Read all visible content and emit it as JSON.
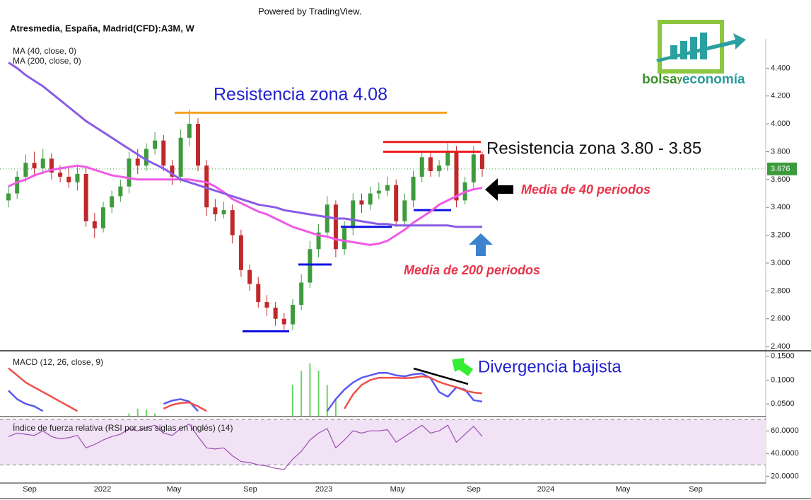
{
  "header": {
    "powered": "Powered by TradingView.",
    "title": "Atresmedia, España, Madrid(CFD):A3M, W"
  },
  "logo": {
    "first": "bolsa",
    "middle": "y",
    "last": "economía"
  },
  "x_axis": {
    "labels": [
      "Sep",
      "2022",
      "May",
      "Sep",
      "2023",
      "May",
      "Sep",
      "2024",
      "May",
      "Sep"
    ]
  },
  "chart_data": [
    {
      "type": "candlestick",
      "up_color": "#3d9b3d",
      "down_color": "#c0282a",
      "open": [
        3.45,
        3.5,
        3.62,
        3.72,
        3.68,
        3.75,
        3.65,
        3.62,
        3.58,
        3.64,
        3.3,
        3.25,
        3.4,
        3.48,
        3.55,
        3.75,
        3.7,
        3.82,
        3.88,
        3.7,
        3.62,
        3.9,
        4.0,
        3.7,
        3.4,
        3.35,
        3.38,
        3.2,
        2.95,
        2.85,
        2.72,
        2.68,
        2.6,
        2.56,
        2.7,
        2.86,
        3.1,
        3.22,
        3.42,
        3.1,
        3.25,
        3.45,
        3.42,
        3.5,
        3.52,
        3.56,
        3.3,
        3.45,
        3.62,
        3.76,
        3.66,
        3.7,
        3.8,
        3.45,
        3.58,
        3.78
      ],
      "high": [
        3.55,
        3.66,
        3.78,
        3.8,
        3.82,
        3.79,
        3.7,
        3.68,
        3.7,
        3.68,
        3.36,
        3.44,
        3.52,
        3.6,
        3.8,
        3.82,
        3.86,
        3.94,
        3.92,
        3.74,
        3.96,
        4.1,
        4.04,
        3.74,
        3.46,
        3.44,
        3.42,
        3.24,
        2.99,
        2.9,
        2.77,
        2.72,
        2.64,
        2.74,
        2.92,
        3.16,
        3.28,
        3.48,
        3.45,
        3.3,
        3.5,
        3.5,
        3.55,
        3.58,
        3.62,
        3.6,
        3.5,
        3.66,
        3.8,
        3.8,
        3.74,
        3.86,
        3.84,
        3.62,
        3.84,
        3.8
      ],
      "low": [
        3.4,
        3.46,
        3.58,
        3.62,
        3.64,
        3.6,
        3.58,
        3.54,
        3.52,
        3.26,
        3.18,
        3.22,
        3.36,
        3.44,
        3.5,
        3.64,
        3.66,
        3.78,
        3.66,
        3.56,
        3.58,
        3.84,
        3.66,
        3.34,
        3.3,
        3.32,
        3.14,
        2.9,
        2.8,
        2.68,
        2.62,
        2.55,
        2.52,
        2.52,
        2.66,
        2.82,
        3.04,
        3.18,
        3.04,
        3.06,
        3.2,
        3.36,
        3.38,
        3.46,
        3.48,
        3.26,
        3.26,
        3.4,
        3.58,
        3.62,
        3.62,
        3.66,
        3.4,
        3.42,
        3.54,
        3.62
      ],
      "close": [
        3.5,
        3.62,
        3.72,
        3.68,
        3.75,
        3.65,
        3.62,
        3.58,
        3.64,
        3.3,
        3.25,
        3.4,
        3.48,
        3.55,
        3.75,
        3.7,
        3.82,
        3.88,
        3.7,
        3.62,
        3.9,
        4.0,
        3.7,
        3.4,
        3.35,
        3.38,
        3.2,
        2.95,
        2.85,
        2.72,
        2.68,
        2.6,
        2.56,
        2.7,
        2.86,
        3.1,
        3.22,
        3.42,
        3.1,
        3.25,
        3.45,
        3.42,
        3.5,
        3.52,
        3.56,
        3.3,
        3.45,
        3.62,
        3.76,
        3.66,
        3.7,
        3.8,
        3.45,
        3.58,
        3.78,
        3.676
      ],
      "last_color": "#3d9b3d",
      "series": [
        {
          "name": "MA (40, close, 0)",
          "color": "#f05ae6",
          "values": [
            3.55,
            3.58,
            3.6,
            3.63,
            3.65,
            3.67,
            3.68,
            3.69,
            3.7,
            3.69,
            3.67,
            3.65,
            3.63,
            3.62,
            3.61,
            3.6,
            3.6,
            3.6,
            3.6,
            3.6,
            3.6,
            3.6,
            3.59,
            3.58,
            3.55,
            3.51,
            3.46,
            3.43,
            3.4,
            3.37,
            3.35,
            3.32,
            3.29,
            3.26,
            3.24,
            3.22,
            3.2,
            3.19,
            3.17,
            3.16,
            3.15,
            3.14,
            3.13,
            3.14,
            3.16,
            3.2,
            3.24,
            3.29,
            3.33,
            3.37,
            3.42,
            3.45,
            3.48,
            3.51,
            3.53,
            3.54
          ]
        },
        {
          "name": "MA (200, close, 0)",
          "color": "#8a5ce6",
          "values": [
            4.44,
            4.4,
            4.35,
            4.31,
            4.27,
            4.22,
            4.17,
            4.12,
            4.07,
            4.02,
            3.98,
            3.94,
            3.9,
            3.86,
            3.82,
            3.78,
            3.74,
            3.71,
            3.68,
            3.64,
            3.6,
            3.58,
            3.56,
            3.54,
            3.52,
            3.5,
            3.48,
            3.46,
            3.44,
            3.42,
            3.41,
            3.4,
            3.38,
            3.37,
            3.36,
            3.35,
            3.34,
            3.33,
            3.32,
            3.32,
            3.31,
            3.3,
            3.29,
            3.28,
            3.28,
            3.27,
            3.27,
            3.27,
            3.27,
            3.27,
            3.27,
            3.27,
            3.26,
            3.26,
            3.26,
            3.26
          ]
        }
      ],
      "levels": [
        {
          "value": 4.08,
          "color": "#f5a020"
        },
        {
          "value": 3.87,
          "color": "#ee1c1c"
        },
        {
          "value": 3.8,
          "color": "#ee1c1c"
        },
        {
          "value": 2.51,
          "color": "#1010e0"
        },
        {
          "value": 2.99,
          "color": "#1010e0"
        },
        {
          "value": 3.26,
          "color": "#1010e0"
        },
        {
          "value": 3.38,
          "color": "#1010e0"
        }
      ],
      "annotations": [
        {
          "text": "Resistencia zona 4.08",
          "color": "#2222cc"
        },
        {
          "text": "Resistencia zona 3.80 - 3.85",
          "color": "#111111"
        },
        {
          "text": "Media de 40 periodos",
          "color": "#e8344a"
        },
        {
          "text": "Media de 200 periodos",
          "color": "#e8344a"
        }
      ],
      "ylim": [
        2.37,
        4.61
      ],
      "yticks": [
        {
          "value": 2.4,
          "label": "2.400"
        },
        {
          "value": 2.6,
          "label": "2.600"
        },
        {
          "value": 2.8,
          "label": "2.800"
        },
        {
          "value": 3.0,
          "label": "3.000"
        },
        {
          "value": 3.2,
          "label": "3.200"
        },
        {
          "value": 3.4,
          "label": "3.400"
        },
        {
          "value": 3.6,
          "label": "3.600"
        },
        {
          "value": 3.8,
          "label": "3.800"
        },
        {
          "value": 4.0,
          "label": "4.000"
        },
        {
          "value": 4.2,
          "label": "4.200"
        },
        {
          "value": 4.4,
          "label": "4.400"
        }
      ]
    },
    {
      "type": "line",
      "title": "MACD (12, 26, close, 9)",
      "annotation": {
        "text": "Divergencia bajista",
        "color": "#2222cc"
      },
      "series": [
        {
          "color": "#5a5af0",
          "values": [
            0.078,
            0.06,
            0.05,
            0.045,
            0.035,
            null,
            null,
            null,
            null,
            null,
            null,
            null,
            null,
            null,
            null,
            null,
            null,
            null,
            0.05,
            0.057,
            0.06,
            0.055,
            0.035,
            null,
            null,
            null,
            null,
            null,
            null,
            null,
            null,
            null,
            null,
            null,
            null,
            null,
            null,
            0.035,
            0.06,
            0.08,
            0.095,
            0.105,
            0.11,
            0.115,
            0.115,
            0.11,
            0.108,
            0.112,
            0.114,
            0.104,
            0.075,
            0.065,
            0.085,
            0.08,
            0.058,
            0.055
          ]
        },
        {
          "color": "#f0504a",
          "values": [
            0.125,
            0.11,
            0.095,
            0.085,
            0.075,
            0.065,
            0.055,
            0.045,
            0.035,
            null,
            null,
            null,
            null,
            null,
            null,
            null,
            null,
            null,
            0.04,
            0.048,
            0.052,
            0.053,
            0.045,
            0.035,
            null,
            null,
            null,
            null,
            null,
            null,
            null,
            null,
            null,
            null,
            null,
            null,
            null,
            null,
            null,
            0.04,
            0.07,
            0.09,
            0.1,
            0.105,
            0.105,
            0.105,
            0.104,
            0.105,
            0.108,
            0.105,
            0.096,
            0.09,
            0.085,
            0.078,
            0.074,
            0.072
          ]
        }
      ],
      "histogram": {
        "color": "#66d866",
        "values": [
          null,
          null,
          null,
          null,
          null,
          null,
          null,
          null,
          null,
          null,
          null,
          null,
          null,
          null,
          0.03,
          0.04,
          0.038,
          0.03,
          null,
          null,
          null,
          null,
          null,
          null,
          null,
          null,
          null,
          null,
          null,
          null,
          null,
          null,
          null,
          0.09,
          0.12,
          0.135,
          0.12,
          0.09,
          0.06,
          null,
          null,
          null,
          null,
          null,
          null,
          null,
          null,
          null,
          null,
          null,
          null,
          null,
          null,
          null,
          null,
          null
        ]
      },
      "ylim": [
        0.025,
        0.16
      ],
      "yticks": [
        {
          "value": 0.05,
          "label": "0.0500"
        },
        {
          "value": 0.1,
          "label": "0.1000"
        },
        {
          "value": 0.15,
          "label": "0.1500"
        }
      ]
    },
    {
      "type": "line",
      "title": "Índice de fuerza relativa (RSI por sus siglas en inglés) (14)",
      "band": [
        30,
        70
      ],
      "band_color": "#f1e2f5",
      "series": [
        {
          "color": "#9c4fb0",
          "values": [
            55,
            58,
            57,
            56,
            60,
            55,
            53,
            54,
            56,
            45,
            48,
            52,
            55,
            57,
            62,
            60,
            63,
            65,
            58,
            56,
            62,
            66,
            55,
            45,
            44,
            45,
            38,
            33,
            32,
            30,
            29,
            27,
            26,
            35,
            42,
            52,
            58,
            62,
            45,
            52,
            60,
            58,
            60,
            60,
            61,
            50,
            55,
            60,
            65,
            58,
            60,
            65,
            50,
            57,
            64,
            55
          ]
        }
      ],
      "ylim": [
        14,
        72
      ],
      "yticks": [
        {
          "value": 20,
          "label": "20.0000"
        },
        {
          "value": 40,
          "label": "40.0000"
        },
        {
          "value": 60,
          "label": "60.0000"
        }
      ]
    }
  ]
}
